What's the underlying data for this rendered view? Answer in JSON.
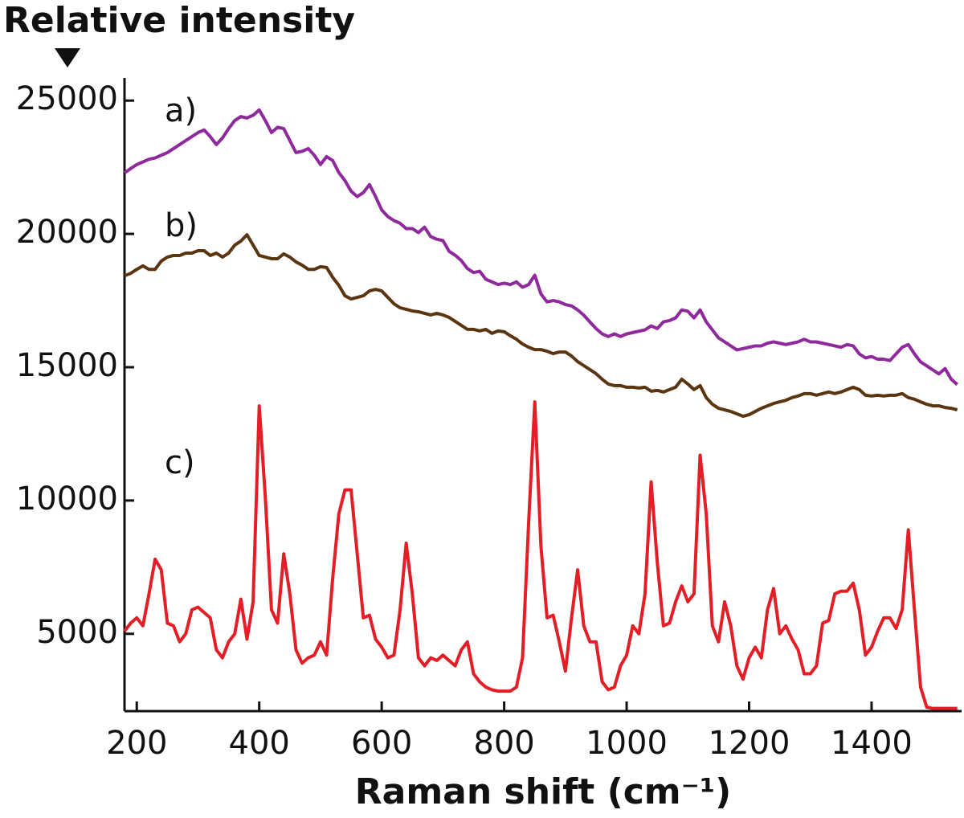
{
  "chart_data": {
    "type": "line",
    "title": "Relative intensity",
    "x_label": "Raman shift (cm⁻¹)",
    "xlim": [
      180,
      1547
    ],
    "ylim": [
      2100,
      25850
    ],
    "xticks": [
      200,
      400,
      600,
      800,
      1000,
      1200,
      1400
    ],
    "yticks": [
      5000,
      10000,
      15000,
      20000,
      25000
    ],
    "grid": false,
    "x": [
      180,
      190,
      200,
      210,
      220,
      230,
      240,
      250,
      260,
      270,
      280,
      290,
      300,
      310,
      320,
      330,
      340,
      350,
      360,
      370,
      380,
      390,
      400,
      410,
      420,
      430,
      440,
      450,
      460,
      470,
      480,
      490,
      500,
      510,
      520,
      530,
      540,
      550,
      560,
      570,
      580,
      590,
      600,
      610,
      620,
      630,
      640,
      650,
      660,
      670,
      680,
      690,
      700,
      710,
      720,
      730,
      740,
      750,
      760,
      770,
      780,
      790,
      800,
      810,
      820,
      830,
      840,
      850,
      860,
      870,
      880,
      890,
      900,
      910,
      920,
      930,
      940,
      950,
      960,
      970,
      980,
      990,
      1000,
      1010,
      1020,
      1030,
      1040,
      1050,
      1060,
      1070,
      1080,
      1090,
      1100,
      1110,
      1120,
      1130,
      1140,
      1150,
      1160,
      1170,
      1180,
      1190,
      1200,
      1210,
      1220,
      1230,
      1240,
      1250,
      1260,
      1270,
      1280,
      1290,
      1300,
      1310,
      1320,
      1330,
      1340,
      1350,
      1360,
      1370,
      1380,
      1390,
      1400,
      1410,
      1420,
      1430,
      1440,
      1450,
      1460,
      1470,
      1480,
      1490,
      1500,
      1510,
      1520,
      1530,
      1540
    ],
    "series": [
      {
        "name": "a)",
        "color": "#8e2a9c",
        "values": [
          22290,
          22450,
          22600,
          22700,
          22800,
          22850,
          22950,
          23050,
          23200,
          23350,
          23500,
          23650,
          23800,
          23900,
          23650,
          23350,
          23600,
          23950,
          24250,
          24400,
          24350,
          24450,
          24650,
          24250,
          23800,
          24000,
          23950,
          23500,
          23050,
          23100,
          23200,
          22950,
          22600,
          22900,
          22750,
          22300,
          22000,
          21600,
          21400,
          21550,
          21850,
          21400,
          20900,
          20650,
          20500,
          20400,
          20200,
          20200,
          20050,
          20250,
          19900,
          19800,
          19750,
          19350,
          19200,
          19000,
          18700,
          18550,
          18600,
          18300,
          18200,
          18100,
          18150,
          18100,
          18200,
          18000,
          18100,
          18450,
          17750,
          17450,
          17500,
          17450,
          17350,
          17300,
          17150,
          16950,
          16700,
          16450,
          16250,
          16150,
          16250,
          16150,
          16250,
          16300,
          16350,
          16400,
          16550,
          16450,
          16700,
          16750,
          16850,
          17150,
          17100,
          16850,
          17150,
          16700,
          16400,
          16100,
          15950,
          15800,
          15650,
          15700,
          15750,
          15800,
          15800,
          15900,
          15950,
          15900,
          15850,
          15900,
          15950,
          16050,
          15950,
          15950,
          15900,
          15850,
          15800,
          15750,
          15850,
          15800,
          15500,
          15350,
          15400,
          15300,
          15300,
          15250,
          15500,
          15750,
          15850,
          15500,
          15200,
          15050,
          14900,
          14750,
          14950,
          14550,
          14350
        ]
      },
      {
        "name": "b)",
        "color": "#5a3510",
        "values": [
          18430,
          18520,
          18670,
          18800,
          18670,
          18670,
          18980,
          19130,
          19190,
          19190,
          19280,
          19280,
          19370,
          19370,
          19190,
          19280,
          19130,
          19280,
          19580,
          19730,
          19970,
          19580,
          19190,
          19130,
          19070,
          19070,
          19250,
          19130,
          18950,
          18830,
          18670,
          18670,
          18770,
          18740,
          18370,
          18070,
          17680,
          17560,
          17620,
          17680,
          17860,
          17920,
          17860,
          17620,
          17380,
          17230,
          17170,
          17110,
          17080,
          17020,
          16960,
          17020,
          16960,
          16870,
          16720,
          16570,
          16420,
          16420,
          16360,
          16420,
          16270,
          16360,
          16330,
          16180,
          16050,
          15870,
          15750,
          15660,
          15660,
          15600,
          15510,
          15570,
          15570,
          15420,
          15210,
          15060,
          14910,
          14760,
          14550,
          14370,
          14310,
          14310,
          14250,
          14250,
          14220,
          14250,
          14100,
          14130,
          14070,
          14160,
          14250,
          14550,
          14370,
          14160,
          14310,
          13860,
          13610,
          13460,
          13400,
          13340,
          13250,
          13160,
          13220,
          13340,
          13460,
          13550,
          13640,
          13700,
          13760,
          13860,
          13920,
          14010,
          14010,
          13950,
          14010,
          14070,
          14010,
          14070,
          14160,
          14250,
          14160,
          13950,
          13920,
          13950,
          13920,
          13950,
          13950,
          14010,
          13860,
          13800,
          13700,
          13610,
          13550,
          13550,
          13490,
          13460,
          13400
        ]
      },
      {
        "name": "c)",
        "color": "#e41e26",
        "values": [
          5100,
          5400,
          5600,
          5300,
          6500,
          7800,
          7400,
          5400,
          5300,
          4700,
          5000,
          5900,
          6000,
          5800,
          5600,
          4400,
          4100,
          4700,
          5000,
          6300,
          4800,
          6200,
          13550,
          10100,
          5900,
          5400,
          8000,
          6500,
          4400,
          3900,
          4100,
          4200,
          4700,
          4200,
          7100,
          9500,
          10400,
          10400,
          8000,
          5600,
          5700,
          4800,
          4500,
          4100,
          4200,
          5900,
          8400,
          6500,
          4100,
          3800,
          4100,
          4000,
          4200,
          4000,
          3800,
          4400,
          4700,
          3500,
          3200,
          3000,
          2900,
          2850,
          2850,
          2850,
          3000,
          4100,
          9200,
          13700,
          8300,
          5600,
          5700,
          4700,
          3600,
          5600,
          7400,
          5300,
          4700,
          4700,
          3200,
          2900,
          3000,
          3800,
          4200,
          5300,
          5000,
          6500,
          10700,
          7700,
          5300,
          5400,
          6200,
          6800,
          6200,
          6500,
          11700,
          9500,
          5300,
          4700,
          6200,
          5300,
          3800,
          3300,
          4100,
          4500,
          4100,
          5900,
          6700,
          5000,
          5300,
          4800,
          4400,
          3500,
          3500,
          3800,
          5400,
          5500,
          6500,
          6600,
          6600,
          6900,
          5900,
          4200,
          4500,
          5100,
          5600,
          5600,
          5200,
          5900,
          8900,
          5900,
          3000,
          2250,
          2200,
          2200,
          2200,
          2200,
          2200
        ]
      }
    ]
  }
}
